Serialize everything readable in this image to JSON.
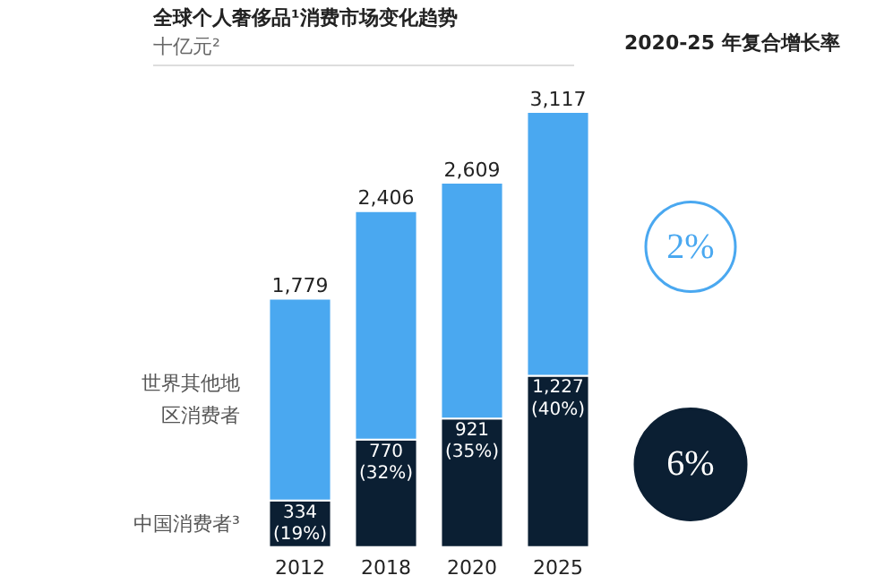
{
  "chart_data": {
    "type": "bar",
    "stacked": true,
    "title": "全球个人奢侈品¹消费市场变化趋势",
    "subtitle": "十亿元²",
    "categories": [
      "2012",
      "2018",
      "2020",
      "2025"
    ],
    "series": [
      {
        "name": "中国消费者³",
        "color": "#0b1f33",
        "values": [
          334,
          770,
          921,
          1227
        ],
        "value_labels": [
          "334\n(19%)",
          "770\n(32%)",
          "921\n(35%)",
          "1,227\n(40%)"
        ]
      },
      {
        "name": "世界其他地区消费者",
        "color": "#4aa8f0",
        "values": [
          1445,
          1636,
          1688,
          1890
        ]
      }
    ],
    "totals": [
      "1,779",
      "2,406",
      "2,609",
      "3,117"
    ],
    "annotations": [
      "2020-25 年复合增长率",
      "2%",
      "6%"
    ],
    "grid": false
  }
}
